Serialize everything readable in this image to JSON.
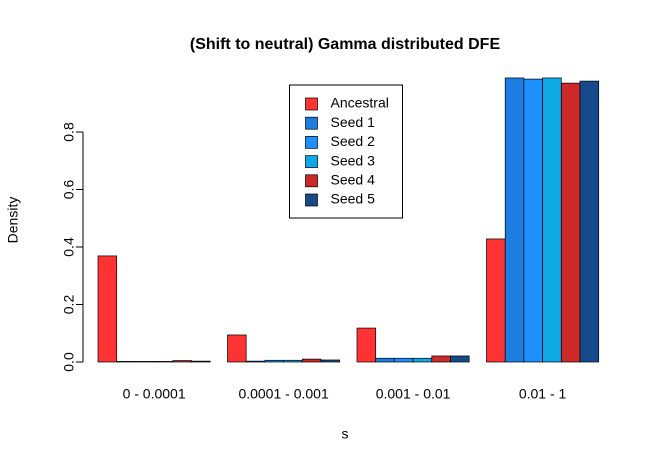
{
  "chart_data": {
    "type": "bar",
    "title": "(Shift to neutral) Gamma distributed DFE",
    "x_label": "s",
    "y_label": "Density",
    "categories": [
      "0 - 0.0001",
      "0.0001 - 0.001",
      "0.001 - 0.01",
      "0.01 - 1"
    ],
    "series": [
      {
        "name": "Ancestral",
        "color": "#ff3333",
        "values": [
          0.369,
          0.094,
          0.118,
          0.428
        ]
      },
      {
        "name": "Seed 1",
        "color": "#1c7ee0",
        "values": [
          0.002,
          0.003,
          0.013,
          0.988
        ]
      },
      {
        "name": "Seed 2",
        "color": "#1e90ff",
        "values": [
          0.002,
          0.006,
          0.013,
          0.984
        ]
      },
      {
        "name": "Seed 3",
        "color": "#0ea8e6",
        "values": [
          0.002,
          0.006,
          0.013,
          0.988
        ]
      },
      {
        "name": "Seed 4",
        "color": "#cc2929",
        "values": [
          0.005,
          0.01,
          0.021,
          0.97
        ]
      },
      {
        "name": "Seed 5",
        "color": "#174a8a",
        "values": [
          0.003,
          0.007,
          0.021,
          0.977
        ]
      }
    ],
    "ylim": [
      0,
      1
    ],
    "yticks": [
      {
        "value": 0,
        "label": "0.0"
      },
      0.2,
      0.4,
      0.6,
      0.8
    ],
    "grid": false,
    "legend": "top"
  }
}
